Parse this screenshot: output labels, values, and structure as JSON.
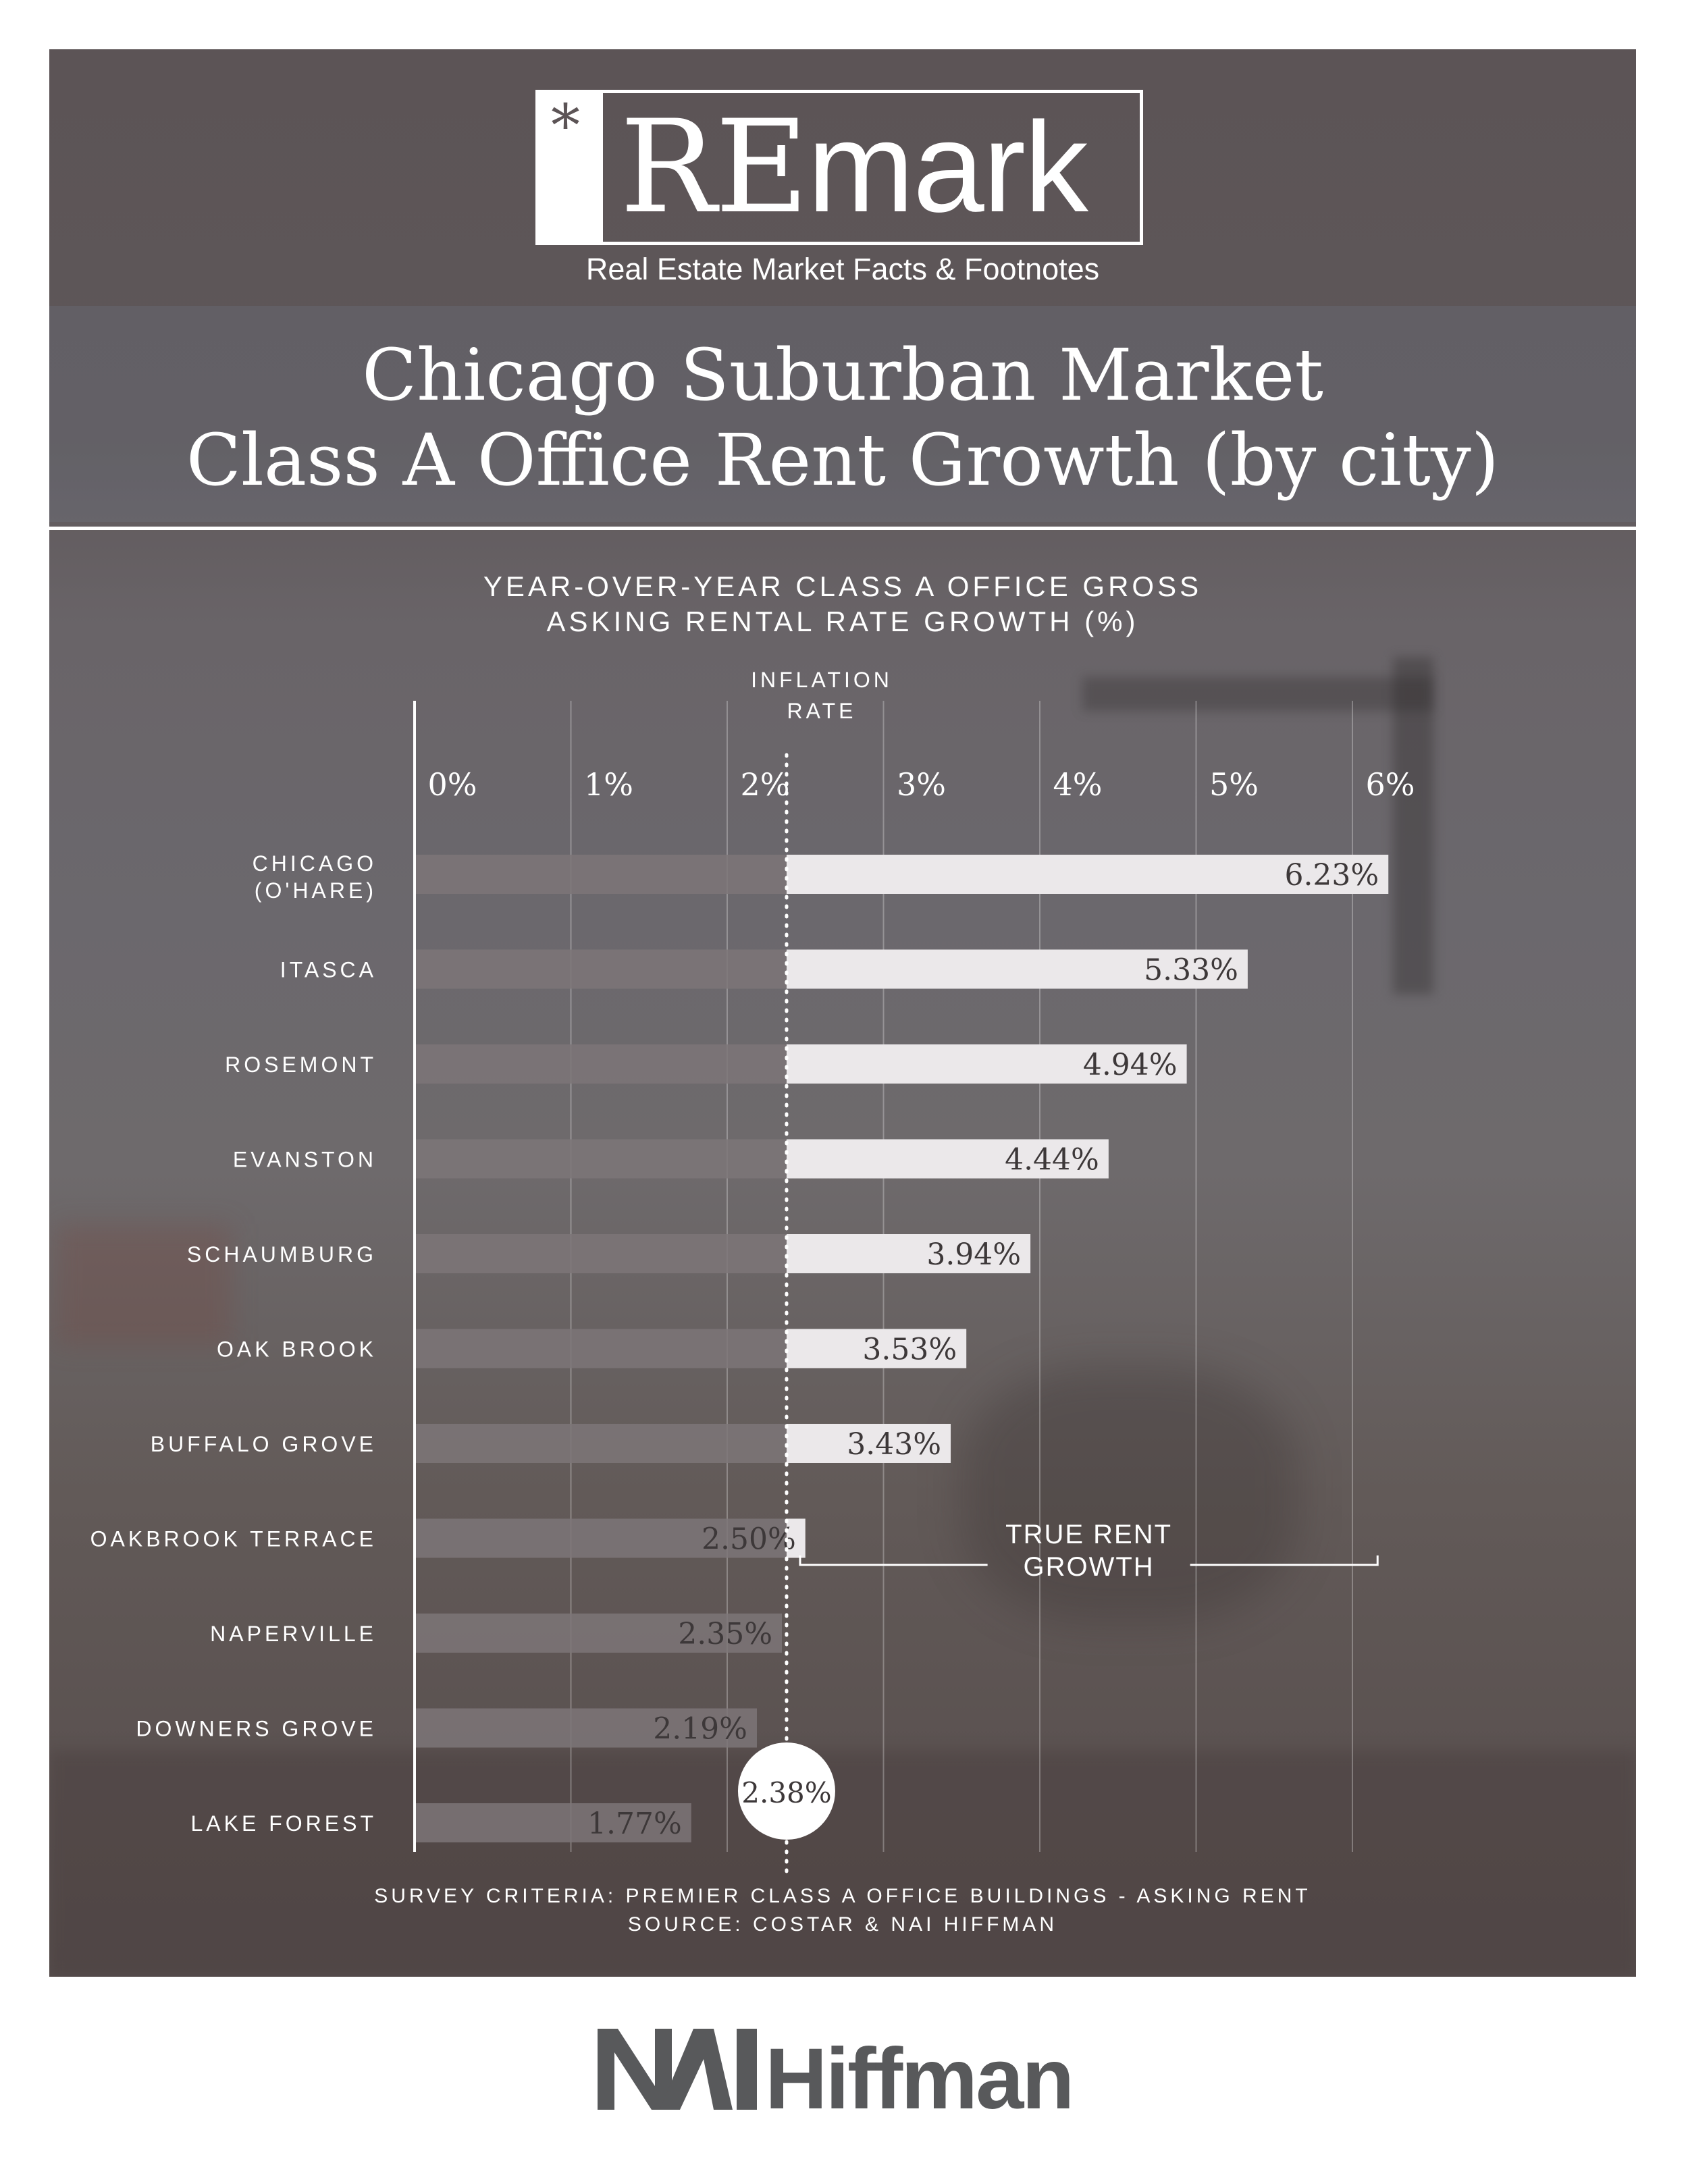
{
  "brand": {
    "logo_asterisk": "*",
    "logo_bold": "RE",
    "logo_light": "mark",
    "tagline": "Real Estate Market Facts & Footnotes"
  },
  "title": {
    "line1": "Chicago Suburban Market",
    "line2": "Class A Office Rent Growth (by city)"
  },
  "chart_data": {
    "type": "bar",
    "orientation": "horizontal",
    "title": "YEAR-OVER-YEAR CLASS A OFFICE GROSS ASKING RENTAL RATE GROWTH (%)",
    "title_lines": [
      "YEAR-OVER-YEAR CLASS A OFFICE GROSS",
      "ASKING RENTAL RATE GROWTH (%)"
    ],
    "categories": [
      "CHICAGO (O'HARE)",
      "ITASCA",
      "ROSEMONT",
      "EVANSTON",
      "SCHAUMBURG",
      "OAK BROOK",
      "BUFFALO GROVE",
      "OAKBROOK TERRACE",
      "NAPERVILLE",
      "DOWNERS GROVE",
      "LAKE FOREST"
    ],
    "category_lines": [
      [
        "CHICAGO",
        "(O'HARE)"
      ],
      [
        "ITASCA"
      ],
      [
        "ROSEMONT"
      ],
      [
        "EVANSTON"
      ],
      [
        "SCHAUMBURG"
      ],
      [
        "OAK BROOK"
      ],
      [
        "BUFFALO GROVE"
      ],
      [
        "OAKBROOK TERRACE"
      ],
      [
        "NAPERVILLE"
      ],
      [
        "DOWNERS GROVE"
      ],
      [
        "LAKE FOREST"
      ]
    ],
    "values": [
      6.23,
      5.33,
      4.94,
      4.44,
      3.94,
      3.53,
      3.43,
      2.5,
      2.35,
      2.19,
      1.77
    ],
    "value_labels": [
      "6.23%",
      "5.33%",
      "4.94%",
      "4.44%",
      "3.94%",
      "3.53%",
      "3.43%",
      "2.50%",
      "2.35%",
      "2.19%",
      "1.77%"
    ],
    "xticks": [
      0,
      1,
      2,
      3,
      4,
      5,
      6
    ],
    "xtick_labels": [
      "0%",
      "1%",
      "2%",
      "3%",
      "4%",
      "5%",
      "6%"
    ],
    "xlim": [
      0,
      6.5
    ],
    "grid": true,
    "reference_line": {
      "label_lines": [
        "INFLATION",
        "RATE"
      ],
      "value": 2.38,
      "value_label": "2.38%"
    },
    "annotation": {
      "label_lines": [
        "TRUE RENT",
        "GROWTH"
      ]
    },
    "colors": {
      "below_reference": "#7d7578",
      "above_reference": "#ebe8ea",
      "bar_text": "#3d3839"
    }
  },
  "footnote": {
    "line1": "SURVEY CRITERIA: PREMIER CLASS A OFFICE BUILDINGS - ASKING RENT",
    "line2": "SOURCE: COSTAR & NAI HIFFMAN"
  },
  "company_logo": {
    "mark": "NAI",
    "name": "Hiffman",
    "color": "#58595b"
  }
}
